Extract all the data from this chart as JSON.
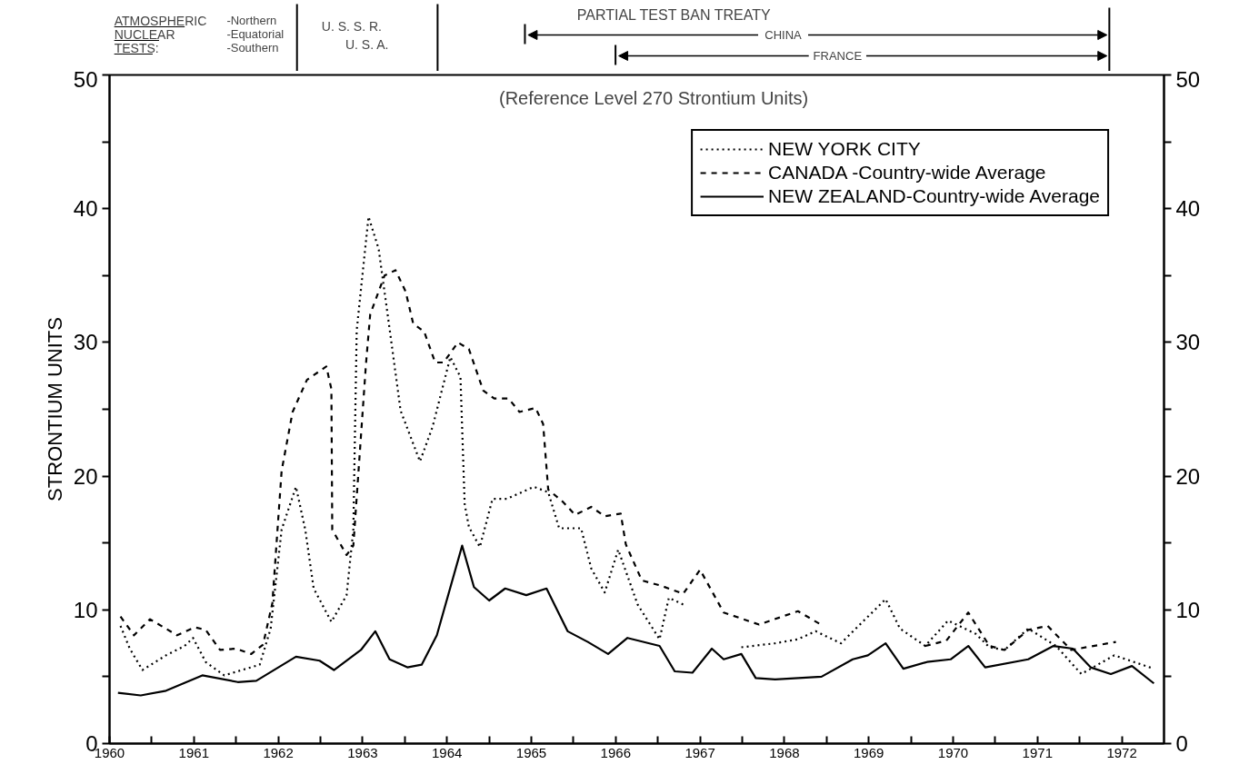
{
  "chart_data": {
    "type": "line",
    "ylabel": "STRONTIUM UNITS",
    "annotations": [
      "ATMOSPHERIC",
      "NUCLEAR",
      "TESTS:",
      "-Northern",
      "-Equatorial",
      "-Southern",
      "U. S. S. R.",
      "U. S. A.",
      "PARTIAL TEST BAN TREATY",
      "CHINA",
      "FRANCE",
      "(Reference Level 270 Strontium Units)"
    ],
    "xlim": [
      1960.5,
      1973
    ],
    "xticks": [
      {
        "value": 1960.5,
        "label": "1960"
      },
      {
        "value": 1961.5,
        "label": "1961"
      },
      {
        "value": 1962.5,
        "label": "1962"
      },
      {
        "value": 1963.5,
        "label": "1963"
      },
      {
        "value": 1964.5,
        "label": "1964"
      },
      {
        "value": 1965.5,
        "label": "1965"
      },
      {
        "value": 1966.5,
        "label": "1966"
      },
      {
        "value": 1967.5,
        "label": "1967"
      },
      {
        "value": 1968.5,
        "label": "1968"
      },
      {
        "value": 1969.5,
        "label": "1969"
      },
      {
        "value": 1970.5,
        "label": "1970"
      },
      {
        "value": 1971.5,
        "label": "1971"
      },
      {
        "value": 1972.5,
        "label": "1972"
      },
      {
        "value": 1961,
        "label": null
      },
      {
        "value": 1962,
        "label": null
      },
      {
        "value": 1963,
        "label": null
      },
      {
        "value": 1964,
        "label": null
      },
      {
        "value": 1965,
        "label": null
      },
      {
        "value": 1966,
        "label": null
      },
      {
        "value": 1967,
        "label": null
      },
      {
        "value": 1968,
        "label": null
      },
      {
        "value": 1969,
        "label": null
      },
      {
        "value": 1970,
        "label": null
      },
      {
        "value": 1971,
        "label": null
      },
      {
        "value": 1972,
        "label": null
      }
    ],
    "ylim": [
      0,
      50
    ],
    "yticks": [
      0,
      10,
      20,
      30,
      40,
      50,
      {
        "value": 5,
        "label": null
      },
      {
        "value": 15,
        "label": null
      },
      {
        "value": 25,
        "label": null
      },
      {
        "value": 35,
        "label": null
      },
      {
        "value": 45,
        "label": null
      }
    ],
    "y2lim": [
      0,
      50
    ],
    "y2ticks": [
      0,
      10,
      20,
      30,
      40,
      50,
      {
        "value": 5,
        "label": null
      },
      {
        "value": 15,
        "label": null
      },
      {
        "value": 25,
        "label": null
      },
      {
        "value": 35,
        "label": null
      },
      {
        "value": 45,
        "label": null
      }
    ],
    "grid": false,
    "legend": "top right",
    "series": [
      {
        "name": "NEW YORK CITY",
        "color": "#000000",
        "line_style": "dotted",
        "x": [
          1960.63,
          1960.74,
          1960.89,
          1961.17,
          1961.39,
          1961.49,
          1961.64,
          1961.86,
          1962.07,
          1962.28,
          1962.41,
          1962.54,
          1962.71,
          1962.82,
          1962.92,
          1963.13,
          1963.31,
          1963.39,
          1963.43,
          1963.57,
          1963.69,
          1963.82,
          1963.95,
          1964.18,
          1964.33,
          1964.54,
          1964.66,
          1964.71,
          1964.76,
          1964.89,
          1965.04,
          1965.21,
          1965.53,
          1965.7,
          1965.83,
          1966.09,
          1966.21,
          1966.37,
          1966.53,
          1966.76,
          1967.02,
          1967.13,
          1967.3,
          1967.6,
          1967.99,
          1968.39,
          1968.66,
          1968.87,
          1969.17,
          1969.7,
          1969.87,
          1970.17,
          1970.44,
          1970.77,
          1970.93,
          1971.11,
          1971.39,
          1971.72,
          1972.02,
          1972.41,
          1972.88
        ],
        "values": [
          8.8,
          7.1,
          5.5,
          6.6,
          7.3,
          7.9,
          6.1,
          5.1,
          5.5,
          5.9,
          8.6,
          16.0,
          19.2,
          16.0,
          11.6,
          9.1,
          11.1,
          16.0,
          30.9,
          39.4,
          37.0,
          31.0,
          24.9,
          21.1,
          23.7,
          28.9,
          27.4,
          17.9,
          16.2,
          14.7,
          18.3,
          18.3,
          19.2,
          18.8,
          16.1,
          16.1,
          13.1,
          11.3,
          14.5,
          10.4,
          7.8,
          10.9,
          10.4,
          null,
          7.2,
          7.5,
          7.8,
          8.4,
          7.5,
          10.8,
          8.6,
          7.3,
          9.2,
          8.2,
          7.2,
          7.0,
          8.6,
          7.3,
          5.2,
          6.6,
          5.6
        ]
      },
      {
        "name": "CANADA -Country-wide Average",
        "color": "#000000",
        "line_style": "dashed",
        "x": [
          1960.63,
          1960.79,
          1960.98,
          1961.3,
          1961.51,
          1961.64,
          1961.81,
          1962.0,
          1962.18,
          1962.32,
          1962.43,
          1962.54,
          1962.67,
          1962.84,
          1963.07,
          1963.13,
          1963.14,
          1963.31,
          1963.39,
          1963.54,
          1963.59,
          1963.76,
          1963.89,
          1964.01,
          1964.1,
          1964.23,
          1964.36,
          1964.46,
          1964.63,
          1964.76,
          1964.93,
          1965.06,
          1965.23,
          1965.36,
          1965.55,
          1965.64,
          1965.7,
          1965.87,
          1966.02,
          1966.21,
          1966.37,
          1966.56,
          1966.62,
          1966.81,
          1967.04,
          1967.3,
          1967.5,
          1967.78,
          1968.2,
          1968.66,
          1968.96,
          1969.5,
          1970.17,
          1970.42,
          1970.68,
          1970.93,
          1971.11,
          1971.39,
          1971.62,
          1971.9,
          1972.43
        ],
        "values": [
          9.5,
          8.1,
          9.3,
          8.1,
          8.7,
          8.5,
          7.0,
          7.1,
          6.7,
          7.4,
          10.5,
          20.4,
          24.8,
          27.2,
          28.2,
          26.5,
          16.0,
          14.1,
          14.8,
          28.4,
          32.1,
          35.0,
          35.4,
          33.8,
          31.4,
          30.8,
          28.5,
          28.5,
          30.0,
          29.5,
          26.4,
          25.8,
          25.8,
          24.8,
          25.1,
          23.9,
          19.0,
          18.1,
          17.1,
          17.7,
          17.0,
          17.2,
          14.9,
          12.2,
          11.8,
          11.2,
          13.0,
          9.8,
          8.9,
          9.9,
          8.8,
          null,
          7.3,
          7.7,
          9.8,
          7.3,
          7.0,
          8.5,
          8.8,
          7.0,
          7.6
        ]
      },
      {
        "name": "NEW ZEALAND-Country-wide Average",
        "color": "#000000",
        "line_style": "solid",
        "x": [
          1960.6,
          1960.87,
          1961.17,
          1961.6,
          1962.02,
          1962.24,
          1962.71,
          1962.99,
          1963.16,
          1963.48,
          1963.65,
          1963.82,
          1964.03,
          1964.2,
          1964.38,
          1964.68,
          1964.82,
          1965.0,
          1965.19,
          1965.44,
          1965.68,
          1965.93,
          1966.17,
          1966.41,
          1966.64,
          1967.02,
          1967.2,
          1967.41,
          1967.64,
          1967.78,
          1967.99,
          1968.16,
          1968.39,
          1968.94,
          1969.31,
          1969.49,
          1969.7,
          1969.91,
          1970.19,
          1970.47,
          1970.68,
          1970.88,
          1971.39,
          1971.69,
          1971.92,
          1972.13,
          1972.37,
          1972.62,
          1972.88
        ],
        "values": [
          3.8,
          3.6,
          3.95,
          5.1,
          4.6,
          4.7,
          6.5,
          6.2,
          5.5,
          7.0,
          8.4,
          6.3,
          5.7,
          5.9,
          8.1,
          14.8,
          11.7,
          10.7,
          11.6,
          11.1,
          11.6,
          8.4,
          7.6,
          6.7,
          7.9,
          7.3,
          5.4,
          5.3,
          7.1,
          6.3,
          6.7,
          4.9,
          4.8,
          5.0,
          6.3,
          6.6,
          7.5,
          5.6,
          6.1,
          6.3,
          7.3,
          5.7,
          6.3,
          7.3,
          7.1,
          5.7,
          5.2,
          5.8,
          4.5
        ]
      }
    ]
  }
}
